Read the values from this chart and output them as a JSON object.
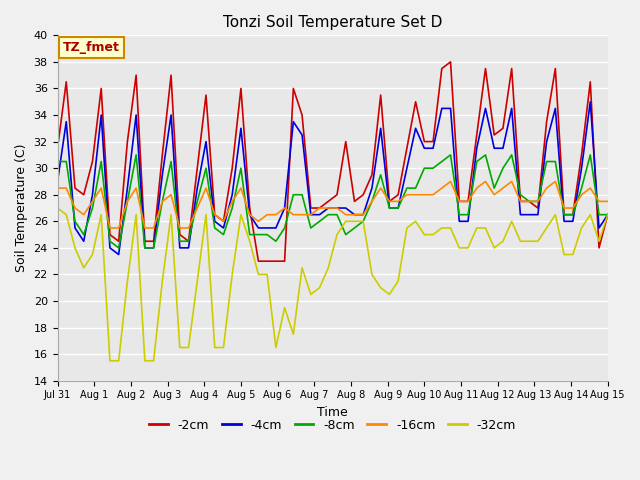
{
  "title": "Tonzi Soil Temperature Set D",
  "xlabel": "Time",
  "ylabel": "Soil Temperature (C)",
  "ylim": [
    14,
    40
  ],
  "yticks": [
    14,
    16,
    18,
    20,
    22,
    24,
    26,
    28,
    30,
    32,
    34,
    36,
    38,
    40
  ],
  "annotation": "TZ_fmet",
  "legend_entries": [
    "-2cm",
    "-4cm",
    "-8cm",
    "-16cm",
    "-32cm"
  ],
  "line_colors": [
    "#cc0000",
    "#0000dd",
    "#00aa00",
    "#ff8800",
    "#cccc00"
  ],
  "x_tick_labels": [
    "Jul 31",
    "Aug 1",
    "Aug 2",
    "Aug 3",
    "Aug 4",
    "Aug 5",
    "Aug 6",
    "Aug 7",
    "Aug 8",
    "Aug 9",
    "Aug 10",
    "Aug 11",
    "Aug 12",
    "Aug 13",
    "Aug 14",
    "Aug 15"
  ],
  "series": {
    "-2cm": [
      31.5,
      36.5,
      28.5,
      28.0,
      30.5,
      36.0,
      25.0,
      24.5,
      32.0,
      37.0,
      24.5,
      24.5,
      31.0,
      37.0,
      25.0,
      24.5,
      30.0,
      35.5,
      26.5,
      26.0,
      30.0,
      36.0,
      27.0,
      23.0,
      23.0,
      23.0,
      23.0,
      36.0,
      34.0,
      27.0,
      27.0,
      27.5,
      28.0,
      32.0,
      27.5,
      28.0,
      29.5,
      35.5,
      27.5,
      28.0,
      31.5,
      35.0,
      32.0,
      32.0,
      37.5,
      38.0,
      27.5,
      27.5,
      32.5,
      37.5,
      32.5,
      33.0,
      37.5,
      27.5,
      27.5,
      27.0,
      33.5,
      37.5,
      26.5,
      26.5,
      31.0,
      36.5,
      24.0,
      26.5
    ],
    "-4cm": [
      29.0,
      33.5,
      25.5,
      24.5,
      28.0,
      34.0,
      24.0,
      23.5,
      28.5,
      34.0,
      24.0,
      24.0,
      29.5,
      34.0,
      24.0,
      24.0,
      28.5,
      32.0,
      26.0,
      25.5,
      28.0,
      33.0,
      26.5,
      25.5,
      25.5,
      25.5,
      27.0,
      33.5,
      32.5,
      26.5,
      26.5,
      27.0,
      27.0,
      27.0,
      26.5,
      26.5,
      28.5,
      33.0,
      27.0,
      27.0,
      30.0,
      33.0,
      31.5,
      31.5,
      34.5,
      34.5,
      26.0,
      26.0,
      31.5,
      34.5,
      31.5,
      31.5,
      34.5,
      26.5,
      26.5,
      26.5,
      32.0,
      34.5,
      26.0,
      26.0,
      30.0,
      35.0,
      25.5,
      26.5
    ],
    "-8cm": [
      30.5,
      30.5,
      26.0,
      25.0,
      27.0,
      30.5,
      24.5,
      24.0,
      27.5,
      31.0,
      24.0,
      24.0,
      27.5,
      30.5,
      24.5,
      24.5,
      27.5,
      30.0,
      25.5,
      25.0,
      27.0,
      30.0,
      25.0,
      25.0,
      25.0,
      24.5,
      25.5,
      28.0,
      28.0,
      25.5,
      26.0,
      26.5,
      26.5,
      25.0,
      25.5,
      26.0,
      27.5,
      29.5,
      27.0,
      27.0,
      28.5,
      28.5,
      30.0,
      30.0,
      30.5,
      31.0,
      26.5,
      26.5,
      30.5,
      31.0,
      28.5,
      30.0,
      31.0,
      28.0,
      27.5,
      27.5,
      30.5,
      30.5,
      26.5,
      26.5,
      28.5,
      31.0,
      26.5,
      26.5
    ],
    "-16cm": [
      28.5,
      28.5,
      27.0,
      26.5,
      27.5,
      28.5,
      25.5,
      25.5,
      27.5,
      28.5,
      25.5,
      25.5,
      27.5,
      28.0,
      25.5,
      25.5,
      27.0,
      28.5,
      26.5,
      26.0,
      27.5,
      28.5,
      26.5,
      26.0,
      26.5,
      26.5,
      27.0,
      26.5,
      26.5,
      26.5,
      27.0,
      27.0,
      27.0,
      26.5,
      26.5,
      26.5,
      27.5,
      28.5,
      27.5,
      27.5,
      28.0,
      28.0,
      28.0,
      28.0,
      28.5,
      29.0,
      27.5,
      27.5,
      28.5,
      29.0,
      28.0,
      28.5,
      29.0,
      27.5,
      27.5,
      27.5,
      28.5,
      29.0,
      27.0,
      27.0,
      28.0,
      28.5,
      27.5,
      27.5
    ],
    "-32cm": [
      27.0,
      26.5,
      24.0,
      22.5,
      23.5,
      26.5,
      15.5,
      15.5,
      21.5,
      26.5,
      15.5,
      15.5,
      21.5,
      26.5,
      16.5,
      16.5,
      21.5,
      26.5,
      16.5,
      16.5,
      22.0,
      26.5,
      24.5,
      22.0,
      22.0,
      16.5,
      19.5,
      17.5,
      22.5,
      20.5,
      21.0,
      22.5,
      25.0,
      26.0,
      26.0,
      26.0,
      22.0,
      21.0,
      20.5,
      21.5,
      25.5,
      26.0,
      25.0,
      25.0,
      25.5,
      25.5,
      24.0,
      24.0,
      25.5,
      25.5,
      24.0,
      24.5,
      26.0,
      24.5,
      24.5,
      24.5,
      25.5,
      26.5,
      23.5,
      23.5,
      25.5,
      26.5,
      24.5,
      26.5
    ]
  }
}
